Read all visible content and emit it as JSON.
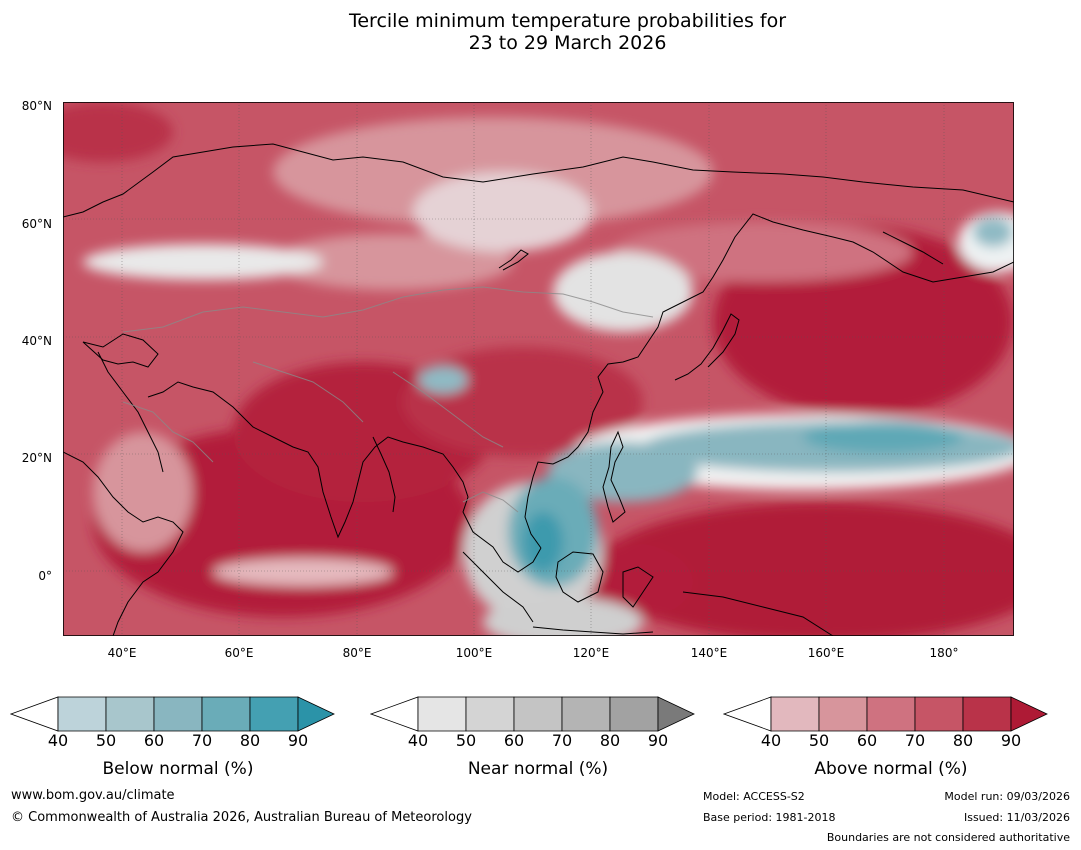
{
  "title": {
    "line1": "Tercile minimum temperature probabilities for",
    "line2": "23 to 29 March 2026"
  },
  "map": {
    "lat_labels": [
      "80°N",
      "60°N",
      "40°N",
      "20°N",
      "0°"
    ],
    "lon_labels": [
      "40°E",
      "60°E",
      "80°E",
      "100°E",
      "120°E",
      "140°E",
      "160°E",
      "180°"
    ],
    "extent": {
      "lon_min": 30,
      "lon_max": 192,
      "lat_min": -10,
      "lat_max": 80
    },
    "below_normal_regions": [
      "South China Sea",
      "Philippine Sea",
      "North Pacific band 15-25°N",
      "Tibet",
      "Kamchatka east"
    ],
    "above_normal_regions": [
      "Arabian Sea",
      "India",
      "China",
      "Japan",
      "North Pacific 30-50°N",
      "Indonesia",
      "Equatorial Pacific"
    ]
  },
  "colorbars": [
    {
      "label": "Below normal (%)",
      "ticks": [
        "40",
        "50",
        "60",
        "70",
        "80",
        "90"
      ],
      "colors": [
        "#ffffff",
        "#bdd3da",
        "#a8c6cc",
        "#89b6c0",
        "#6aacb8",
        "#44a0b2",
        "#2b93a8"
      ]
    },
    {
      "label": "Near normal (%)",
      "ticks": [
        "40",
        "50",
        "60",
        "70",
        "80",
        "90"
      ],
      "colors": [
        "#ffffff",
        "#e5e5e5",
        "#d4d4d4",
        "#c4c4c4",
        "#b4b4b4",
        "#a2a2a2",
        "#7a7a7a"
      ]
    },
    {
      "label": "Above normal (%)",
      "ticks": [
        "40",
        "50",
        "60",
        "70",
        "80",
        "90"
      ],
      "colors": [
        "#ffffff",
        "#e2b8be",
        "#d7959c",
        "#cf7280",
        "#c65566",
        "#b93349",
        "#ae1a35"
      ]
    }
  ],
  "footer": {
    "url": "www.bom.gov.au/climate",
    "copyright": "© Commonwealth of Australia 2026, Australian Bureau of Meteorology",
    "model": "Model: ACCESS-S2",
    "base_period": "Base period: 1981-2018",
    "model_run": "Model run: 09/03/2026",
    "issued": "Issued: 11/03/2026",
    "disclaimer": "Boundaries are not considered authoritative"
  }
}
